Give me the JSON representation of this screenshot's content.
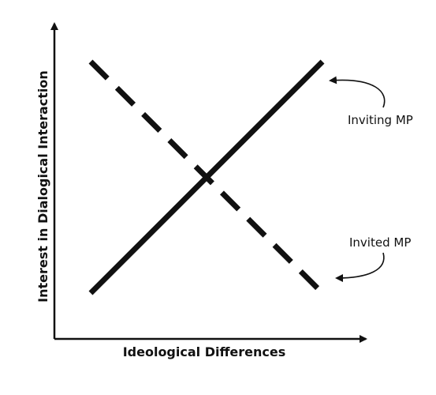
{
  "chart_data": {
    "type": "line",
    "xlabel": "Ideological Differences",
    "ylabel": "Interest in Dialogical Interaction",
    "x": [
      0,
      1
    ],
    "series": [
      {
        "name": "Inviting MP",
        "values": [
          0,
          1
        ],
        "style": "solid"
      },
      {
        "name": "Invited MP",
        "values": [
          1,
          0
        ],
        "style": "dashed"
      }
    ],
    "grid": false
  },
  "colors": {
    "ink": "#111111",
    "background": "#ffffff"
  }
}
